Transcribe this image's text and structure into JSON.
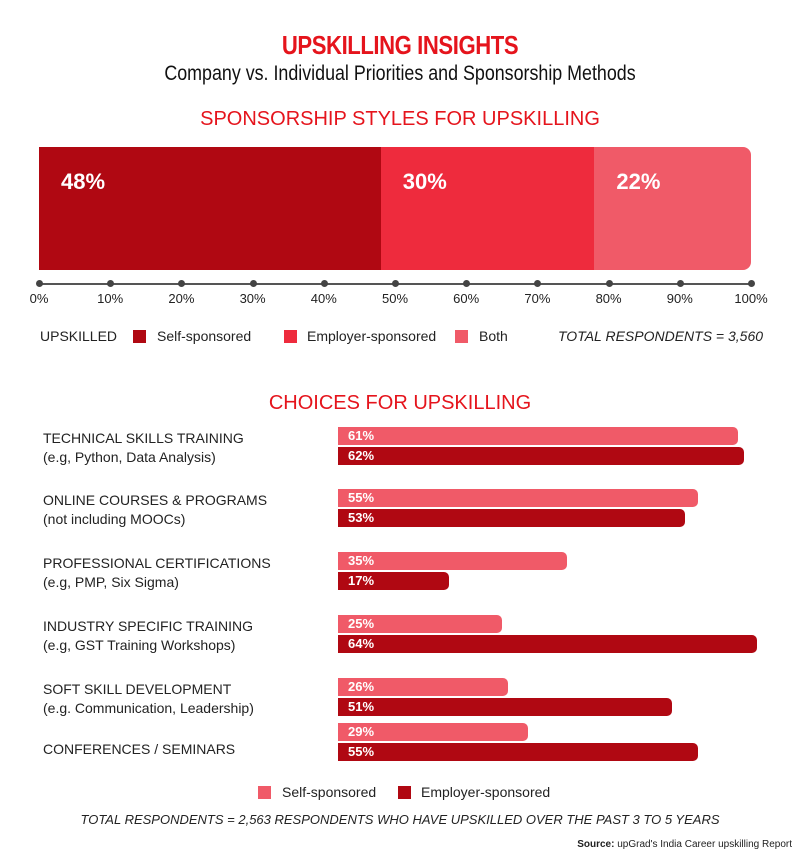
{
  "title": "UPSKILLING INSIGHTS",
  "subtitle": "Company vs. Individual Priorities and Sponsorship Methods",
  "colors": {
    "self": "#b00812",
    "employer": "#ee2b3d",
    "both": "#f05a68",
    "choice_self": "#f05a68",
    "choice_employer": "#b00812",
    "accent": "#e5141c"
  },
  "chart_data": [
    {
      "type": "bar",
      "stacked": true,
      "orientation": "horizontal",
      "title": "SPONSORSHIP STYLES FOR UPSKILLING",
      "legend_title": "UPSKILLED",
      "series": [
        {
          "name": "Self-sponsored",
          "value": 48,
          "label": "48%"
        },
        {
          "name": "Employer-sponsored",
          "value": 30,
          "label": "30%"
        },
        {
          "name": "Both",
          "value": 22,
          "label": "22%"
        }
      ],
      "xlim": [
        0,
        100
      ],
      "ticks": [
        "0%",
        "10%",
        "20%",
        "30%",
        "40%",
        "50%",
        "60%",
        "70%",
        "80%",
        "90%",
        "100%"
      ],
      "note": "TOTAL RESPONDENTS = 3,560",
      "legend_placement": "bottom"
    },
    {
      "type": "bar",
      "orientation": "horizontal",
      "title": "CHOICES FOR UPSKILLING",
      "categories": [
        [
          "TECHNICAL SKILLS TRAINING",
          "(e.g, Python, Data Analysis)"
        ],
        [
          "ONLINE COURSES & PROGRAMS",
          "(not including MOOCs)"
        ],
        [
          "PROFESSIONAL CERTIFICATIONS",
          "(e.g, PMP, Six Sigma)"
        ],
        [
          "INDUSTRY SPECIFIC TRAINING",
          "(e.g, GST Training Workshops)"
        ],
        [
          "SOFT SKILL DEVELOPMENT",
          "(e.g. Communication, Leadership)"
        ],
        [
          "CONFERENCES / SEMINARS",
          ""
        ]
      ],
      "series": [
        {
          "name": "Self-sponsored",
          "values": [
            61,
            55,
            35,
            25,
            26,
            29
          ],
          "labels": [
            "61%",
            "55%",
            "35%",
            "25%",
            "26%",
            "29%"
          ]
        },
        {
          "name": "Employer-sponsored",
          "values": [
            62,
            53,
            17,
            64,
            51,
            55
          ],
          "labels": [
            "62%",
            "53%",
            "17%",
            "64%",
            "51%",
            "55%"
          ]
        }
      ],
      "legend_placement": "bottom",
      "note": "TOTAL RESPONDENTS = 2,563 RESPONDENTS WHO HAVE UPSKILLED OVER THE PAST 3 TO 5 YEARS"
    }
  ],
  "source_label": "Source:",
  "source_text": " upGrad's India Career upskilling Report"
}
